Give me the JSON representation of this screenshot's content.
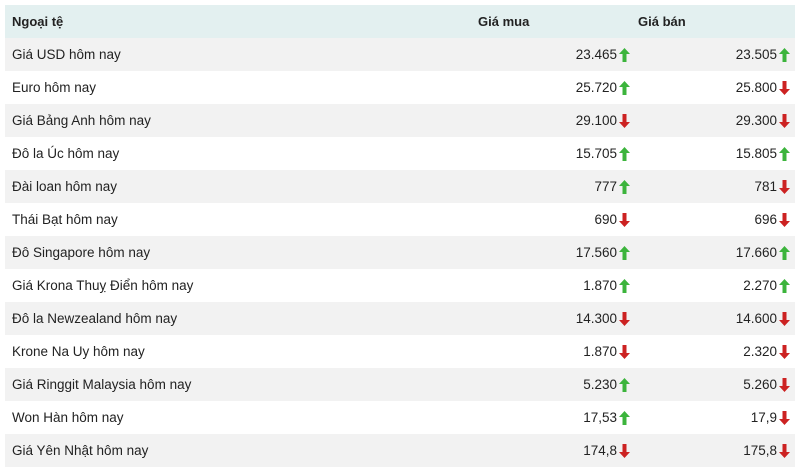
{
  "header": {
    "currency": "Ngoại tệ",
    "buy": "Giá mua",
    "sell": "Giá bán"
  },
  "colors": {
    "up": "#3cb43c",
    "down": "#cc2222",
    "header_bg": "#e3f0f0",
    "stripe": "#f2f2f2"
  },
  "rows": [
    {
      "name": "Giá USD hôm nay",
      "buy": "23.465",
      "buy_trend": "up",
      "sell": "23.505",
      "sell_trend": "up"
    },
    {
      "name": "Euro hôm nay",
      "buy": "25.720",
      "buy_trend": "up",
      "sell": "25.800",
      "sell_trend": "down"
    },
    {
      "name": "Giá Bảng Anh hôm nay",
      "buy": "29.100",
      "buy_trend": "down",
      "sell": "29.300",
      "sell_trend": "down"
    },
    {
      "name": "Đô la Úc hôm nay",
      "buy": "15.705",
      "buy_trend": "up",
      "sell": "15.805",
      "sell_trend": "up"
    },
    {
      "name": "Đài loan hôm nay",
      "buy": "777",
      "buy_trend": "up",
      "sell": "781",
      "sell_trend": "down"
    },
    {
      "name": "Thái Bạt hôm nay",
      "buy": "690",
      "buy_trend": "down",
      "sell": "696",
      "sell_trend": "down"
    },
    {
      "name": "Đô Singapore hôm nay",
      "buy": "17.560",
      "buy_trend": "up",
      "sell": "17.660",
      "sell_trend": "up"
    },
    {
      "name": "Giá Krona Thuỵ Điển hôm nay",
      "buy": "1.870",
      "buy_trend": "up",
      "sell": "2.270",
      "sell_trend": "up"
    },
    {
      "name": "Đô la Newzealand hôm nay",
      "buy": "14.300",
      "buy_trend": "down",
      "sell": "14.600",
      "sell_trend": "down"
    },
    {
      "name": "Krone Na Uy hôm nay",
      "buy": "1.870",
      "buy_trend": "down",
      "sell": "2.320",
      "sell_trend": "down"
    },
    {
      "name": "Giá Ringgit Malaysia hôm nay",
      "buy": "5.230",
      "buy_trend": "up",
      "sell": "5.260",
      "sell_trend": "down"
    },
    {
      "name": "Won Hàn hôm nay",
      "buy": "17,53",
      "buy_trend": "up",
      "sell": "17,9",
      "sell_trend": "down"
    },
    {
      "name": "Giá Yên Nhật hôm nay",
      "buy": "174,8",
      "buy_trend": "down",
      "sell": "175,8",
      "sell_trend": "down"
    }
  ]
}
